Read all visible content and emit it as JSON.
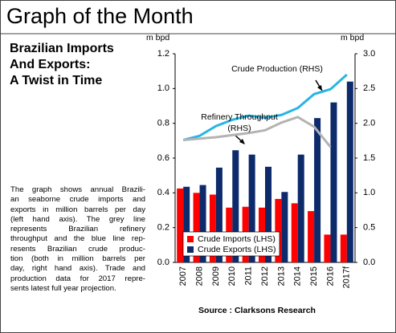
{
  "header": {
    "title": "Graph of the Month"
  },
  "article": {
    "title_lines": [
      "Brazilian Imports",
      "And Exports:",
      "A Twist in Time"
    ],
    "body_lines": [
      "The graph shows annual Brazili-",
      "an seaborne crude imports and",
      "exports in million barrels per day",
      "(left hand axis). The grey line",
      "represents Brazilian refinery",
      "throughput and the blue line rep-",
      "resents Brazilian crude produc-",
      "tion (both in million barrels per",
      "day, right hand axis). Trade and",
      "production data for 2017 repre-",
      "sents latest full year projection."
    ]
  },
  "source": "Source : Clarksons Research",
  "chart_data": {
    "type": "bar",
    "y_unit": "m bpd",
    "y2_unit": "m bpd",
    "categories": [
      "2007",
      "2008",
      "2009",
      "2010",
      "2011",
      "2012",
      "2013",
      "2014",
      "2015",
      "2016",
      "2017f"
    ],
    "series": [
      {
        "name": "Crude Imports (LHS)",
        "color": "#ff0000",
        "type": "bar",
        "values": [
          0.425,
          0.4,
          0.39,
          0.315,
          0.32,
          0.315,
          0.365,
          0.34,
          0.295,
          0.16,
          0.16
        ]
      },
      {
        "name": "Crude Exports (LHS)",
        "color": "#0d2a6b",
        "type": "bar",
        "values": [
          0.435,
          0.445,
          0.545,
          0.645,
          0.62,
          0.55,
          0.405,
          0.62,
          0.83,
          0.92,
          1.04
        ]
      },
      {
        "name": "Crude Production (RHS)",
        "color": "#27b5e6",
        "type": "line",
        "axis": "y2",
        "values": [
          1.76,
          1.82,
          1.96,
          2.05,
          2.11,
          2.08,
          2.12,
          2.22,
          2.42,
          2.49,
          2.7
        ]
      },
      {
        "name": "Refinery Throughput (RHS)",
        "color": "#b3b3b3",
        "type": "line",
        "axis": "y2",
        "values": [
          1.76,
          1.78,
          1.8,
          1.83,
          1.86,
          1.9,
          2.01,
          2.09,
          1.95,
          1.66,
          null
        ]
      }
    ],
    "annotations": [
      {
        "lines": [
          "Crude Production (RHS)"
        ]
      },
      {
        "lines": [
          "Refinery Throughput",
          "(RHS)"
        ]
      }
    ],
    "ylim": [
      0,
      1.2
    ],
    "yticks": [
      {
        "value": 0,
        "label": "0.0"
      },
      0.2,
      0.4,
      0.6,
      0.8,
      {
        "value": 1,
        "label": "1.0"
      },
      1.2
    ],
    "y2lim": [
      0,
      3
    ],
    "y2ticks": [
      {
        "value": 0,
        "label": "0.0"
      },
      0.5,
      {
        "value": 1,
        "label": "1.0"
      },
      1.5,
      {
        "value": 2,
        "label": "2.0"
      },
      2.5,
      {
        "value": 3,
        "label": "3.0"
      }
    ],
    "legend": "lower left"
  }
}
